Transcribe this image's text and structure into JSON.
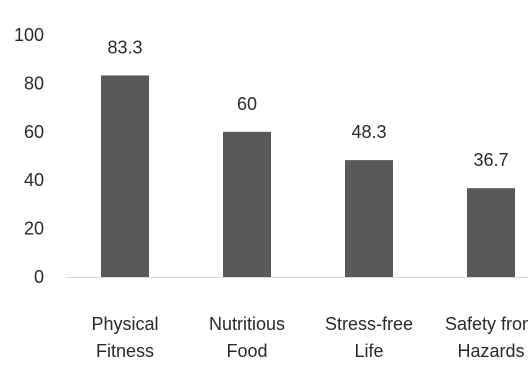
{
  "chart_data": {
    "type": "bar",
    "title": "",
    "xlabel": "",
    "ylabel": "",
    "categories": [
      [
        "Physical",
        "Fitness"
      ],
      [
        "Nutritious",
        "Food"
      ],
      [
        "Stress-free",
        "Life"
      ],
      [
        "Safety from",
        "Hazards"
      ]
    ],
    "values": [
      83.3,
      60,
      48.3,
      36.7
    ],
    "value_labels": [
      "83.3",
      "60",
      "48.3",
      "36.7"
    ],
    "ylim": [
      0,
      100
    ],
    "yticks": [
      0,
      20,
      40,
      60,
      80,
      100
    ],
    "grid": false,
    "legend": "none",
    "bar_color": "#595959",
    "axis_color": "#d9d9d9"
  }
}
